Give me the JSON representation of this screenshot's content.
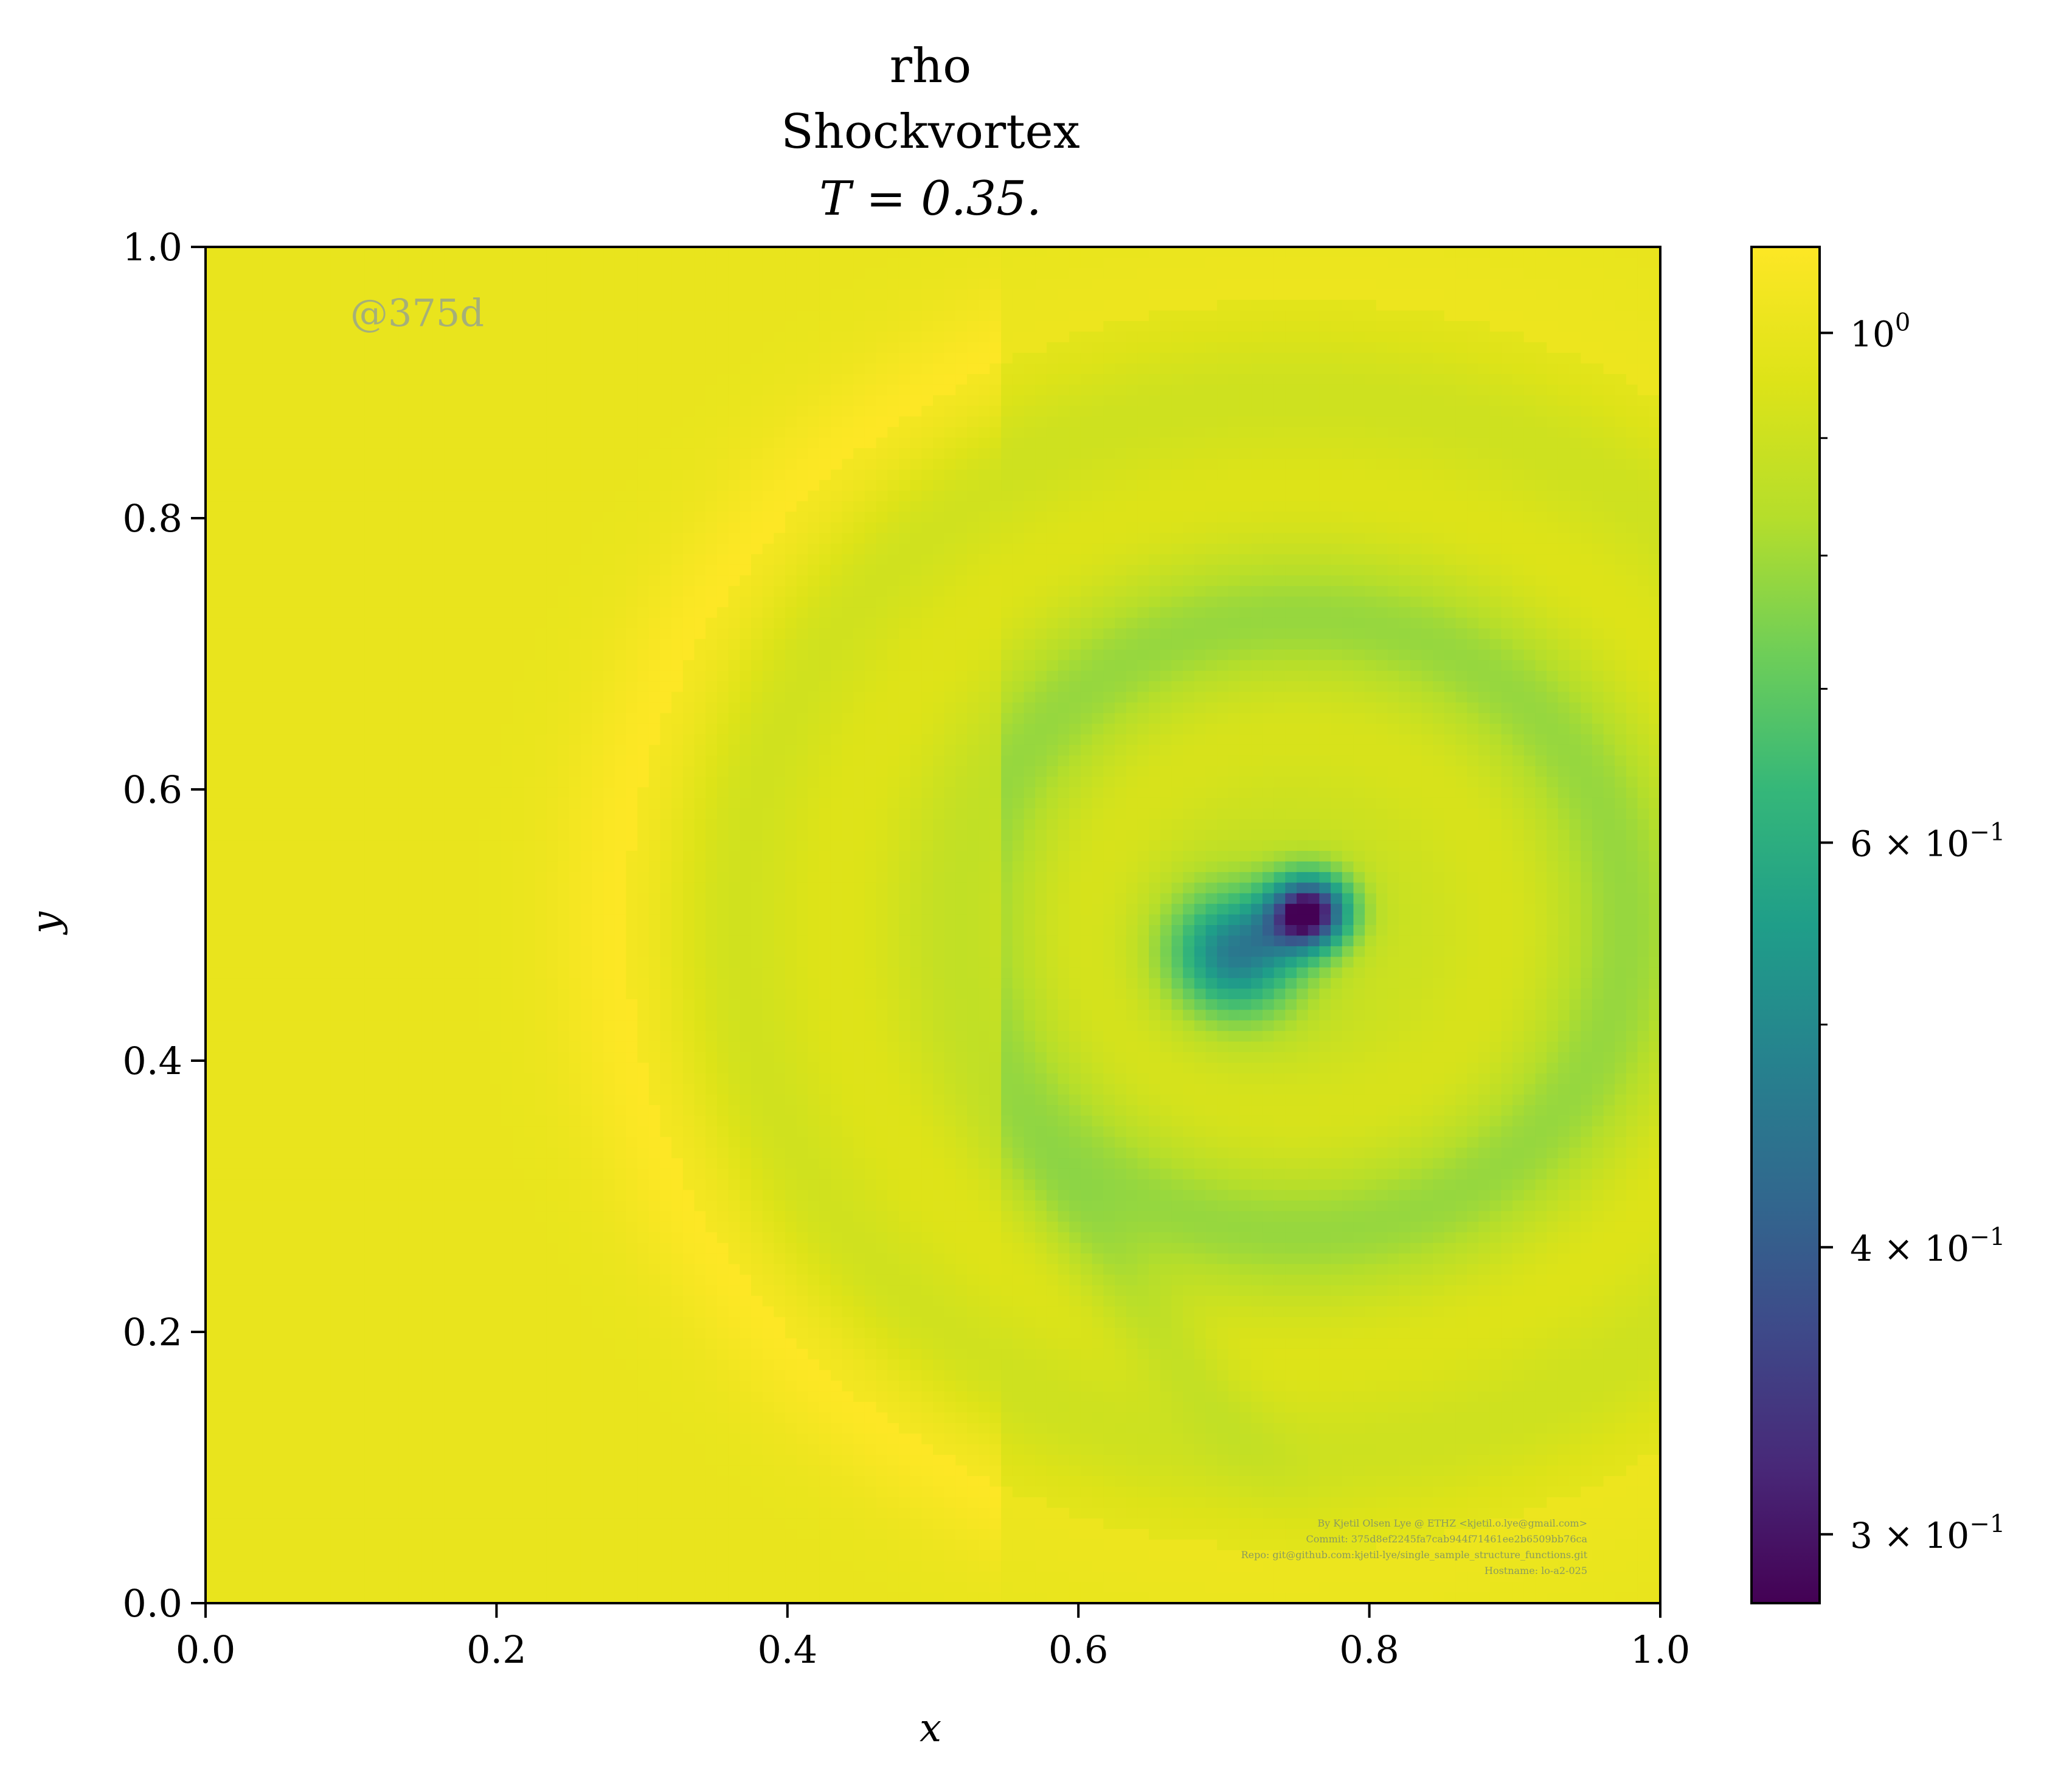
{
  "chart_data": {
    "type": "heatmap",
    "title_lines": [
      "rho",
      "Shockvortex",
      "T = 0.35."
    ],
    "xlabel": "x",
    "ylabel": "y",
    "xlim": [
      0.0,
      1.0
    ],
    "ylim": [
      0.0,
      1.0
    ],
    "x_ticks": [
      "0.0",
      "0.2",
      "0.4",
      "0.6",
      "0.8",
      "1.0"
    ],
    "y_ticks": [
      "0.0",
      "0.2",
      "0.4",
      "0.6",
      "0.8",
      "1.0"
    ],
    "x_tick_values": [
      0.0,
      0.2,
      0.4,
      0.6,
      0.8,
      1.0
    ],
    "y_tick_values": [
      0.0,
      0.2,
      0.4,
      0.6,
      0.8,
      1.0
    ],
    "colormap": "viridis",
    "colorbar": {
      "scale": "log",
      "range": [
        0.28,
        1.09
      ],
      "major_ticks": [
        {
          "value": 1.0,
          "label": "10",
          "sup": "0"
        },
        {
          "value": 0.6,
          "label": "6 × 10",
          "sup": "−1"
        },
        {
          "value": 0.4,
          "label": "4 × 10",
          "sup": "−1"
        },
        {
          "value": 0.3,
          "label": "3 × 10",
          "sup": "−1"
        }
      ],
      "minor_ticks": [
        0.9,
        0.8,
        0.7,
        0.5
      ]
    },
    "field_features": [
      {
        "kind": "shock_arc",
        "center": [
          0.75,
          0.5
        ],
        "radius": 0.46,
        "peak_rho": 1.09
      },
      {
        "kind": "vortex_core",
        "center": [
          0.76,
          0.51
        ],
        "min_rho": 0.32
      },
      {
        "kind": "vortex_lobe",
        "center": [
          0.71,
          0.48
        ],
        "min_rho": 0.5
      },
      {
        "kind": "low_density_band",
        "center": [
          0.64,
          0.22
        ],
        "rho": 0.85
      }
    ],
    "grid": false
  },
  "watermark": "@375d",
  "footer_lines": [
    "By Kjetil Olsen Lye @ ETHZ <kjetil.o.lye@gmail.com>",
    "Commit: 375d8ef2245fa7cab944f71461ee2b6509bb76ca",
    "Repo: git@github.com:kjetil-lye/single_sample_structure_functions.git",
    "Hostname: lo-a2-025"
  ]
}
